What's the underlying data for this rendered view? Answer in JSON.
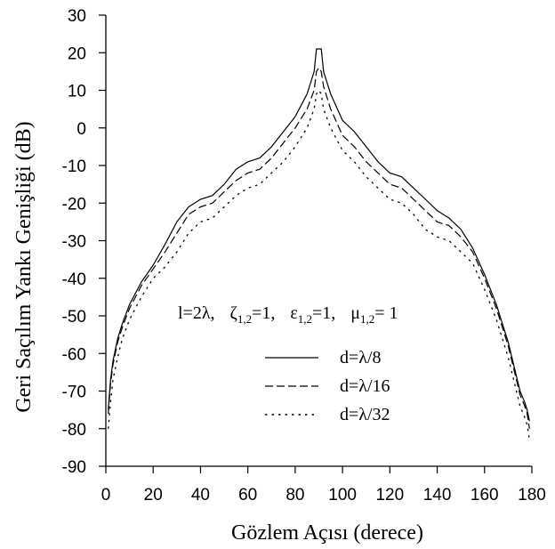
{
  "chart_data": {
    "type": "line",
    "xlabel": "Gözlem Açısı (derece)",
    "ylabel": "Geri Saçılım Yankı Genişliği (dB)",
    "xlim": [
      0,
      180
    ],
    "ylim": [
      -90,
      30
    ],
    "xticks": [
      "0",
      "20",
      "40",
      "60",
      "80",
      "100",
      "120",
      "140",
      "160",
      "180"
    ],
    "yticks": [
      "30",
      "20",
      "10",
      "0",
      "-10",
      "-20",
      "-30",
      "-40",
      "-50",
      "-60",
      "-70",
      "-80",
      "-90"
    ],
    "grid": false,
    "legend_position": "center-bottom",
    "annotation": {
      "l": "l=2λ,",
      "zeta": "ζ",
      "zeta_sub": "1,2",
      "zeta_val": "=1,",
      "eps": "ε",
      "eps_sub": "1,2",
      "eps_val": "=1,",
      "mu": "μ",
      "mu_sub": "1,2",
      "mu_val": "= 1"
    },
    "x": [
      1,
      2,
      3,
      5,
      7,
      10,
      15,
      20,
      25,
      30,
      35,
      40,
      45,
      50,
      55,
      60,
      65,
      70,
      75,
      80,
      85,
      88,
      89,
      90,
      91,
      92,
      95,
      100,
      105,
      110,
      115,
      120,
      125,
      130,
      135,
      140,
      145,
      150,
      155,
      160,
      165,
      170,
      175,
      177,
      178,
      179
    ],
    "series": [
      {
        "name": "d=λ/8",
        "style": "solid",
        "values": [
          -75,
          -67,
          -62,
          -56,
          -52,
          -47,
          -41,
          -36.5,
          -31,
          -25,
          -21,
          -19,
          -18,
          -15,
          -11,
          -9,
          -8,
          -5,
          -1,
          3,
          9,
          15,
          21,
          21,
          21,
          15,
          9,
          2,
          -1,
          -5,
          -9,
          -12,
          -13,
          -16,
          -19,
          -22,
          -24,
          -27,
          -32,
          -39,
          -47,
          -57,
          -70,
          -73,
          -75,
          -78
        ]
      },
      {
        "name": "d=λ/16",
        "style": "dashed",
        "values": [
          -76,
          -68,
          -63,
          -57,
          -53,
          -48,
          -42,
          -37.5,
          -33,
          -28,
          -23,
          -21,
          -20,
          -17,
          -14,
          -12,
          -11,
          -8,
          -4,
          0,
          5,
          10,
          15,
          16,
          15,
          11,
          5,
          -2,
          -5,
          -9,
          -12,
          -15,
          -16,
          -19,
          -22,
          -25,
          -26,
          -29,
          -33,
          -40,
          -48,
          -58,
          -71,
          -74,
          -76,
          -80
        ]
      },
      {
        "name": "d=λ/32",
        "style": "dotted",
        "values": [
          -80,
          -73,
          -67,
          -61,
          -56,
          -51,
          -45,
          -40,
          -37,
          -33,
          -28,
          -25,
          -24,
          -21,
          -18,
          -16,
          -15,
          -12,
          -9,
          -5,
          0,
          5,
          9,
          10,
          9,
          5,
          0,
          -6,
          -9,
          -13,
          -16,
          -19,
          -20,
          -23,
          -27,
          -29,
          -30,
          -33,
          -36,
          -43,
          -51,
          -61,
          -74,
          -77,
          -79,
          -83
        ]
      }
    ]
  }
}
